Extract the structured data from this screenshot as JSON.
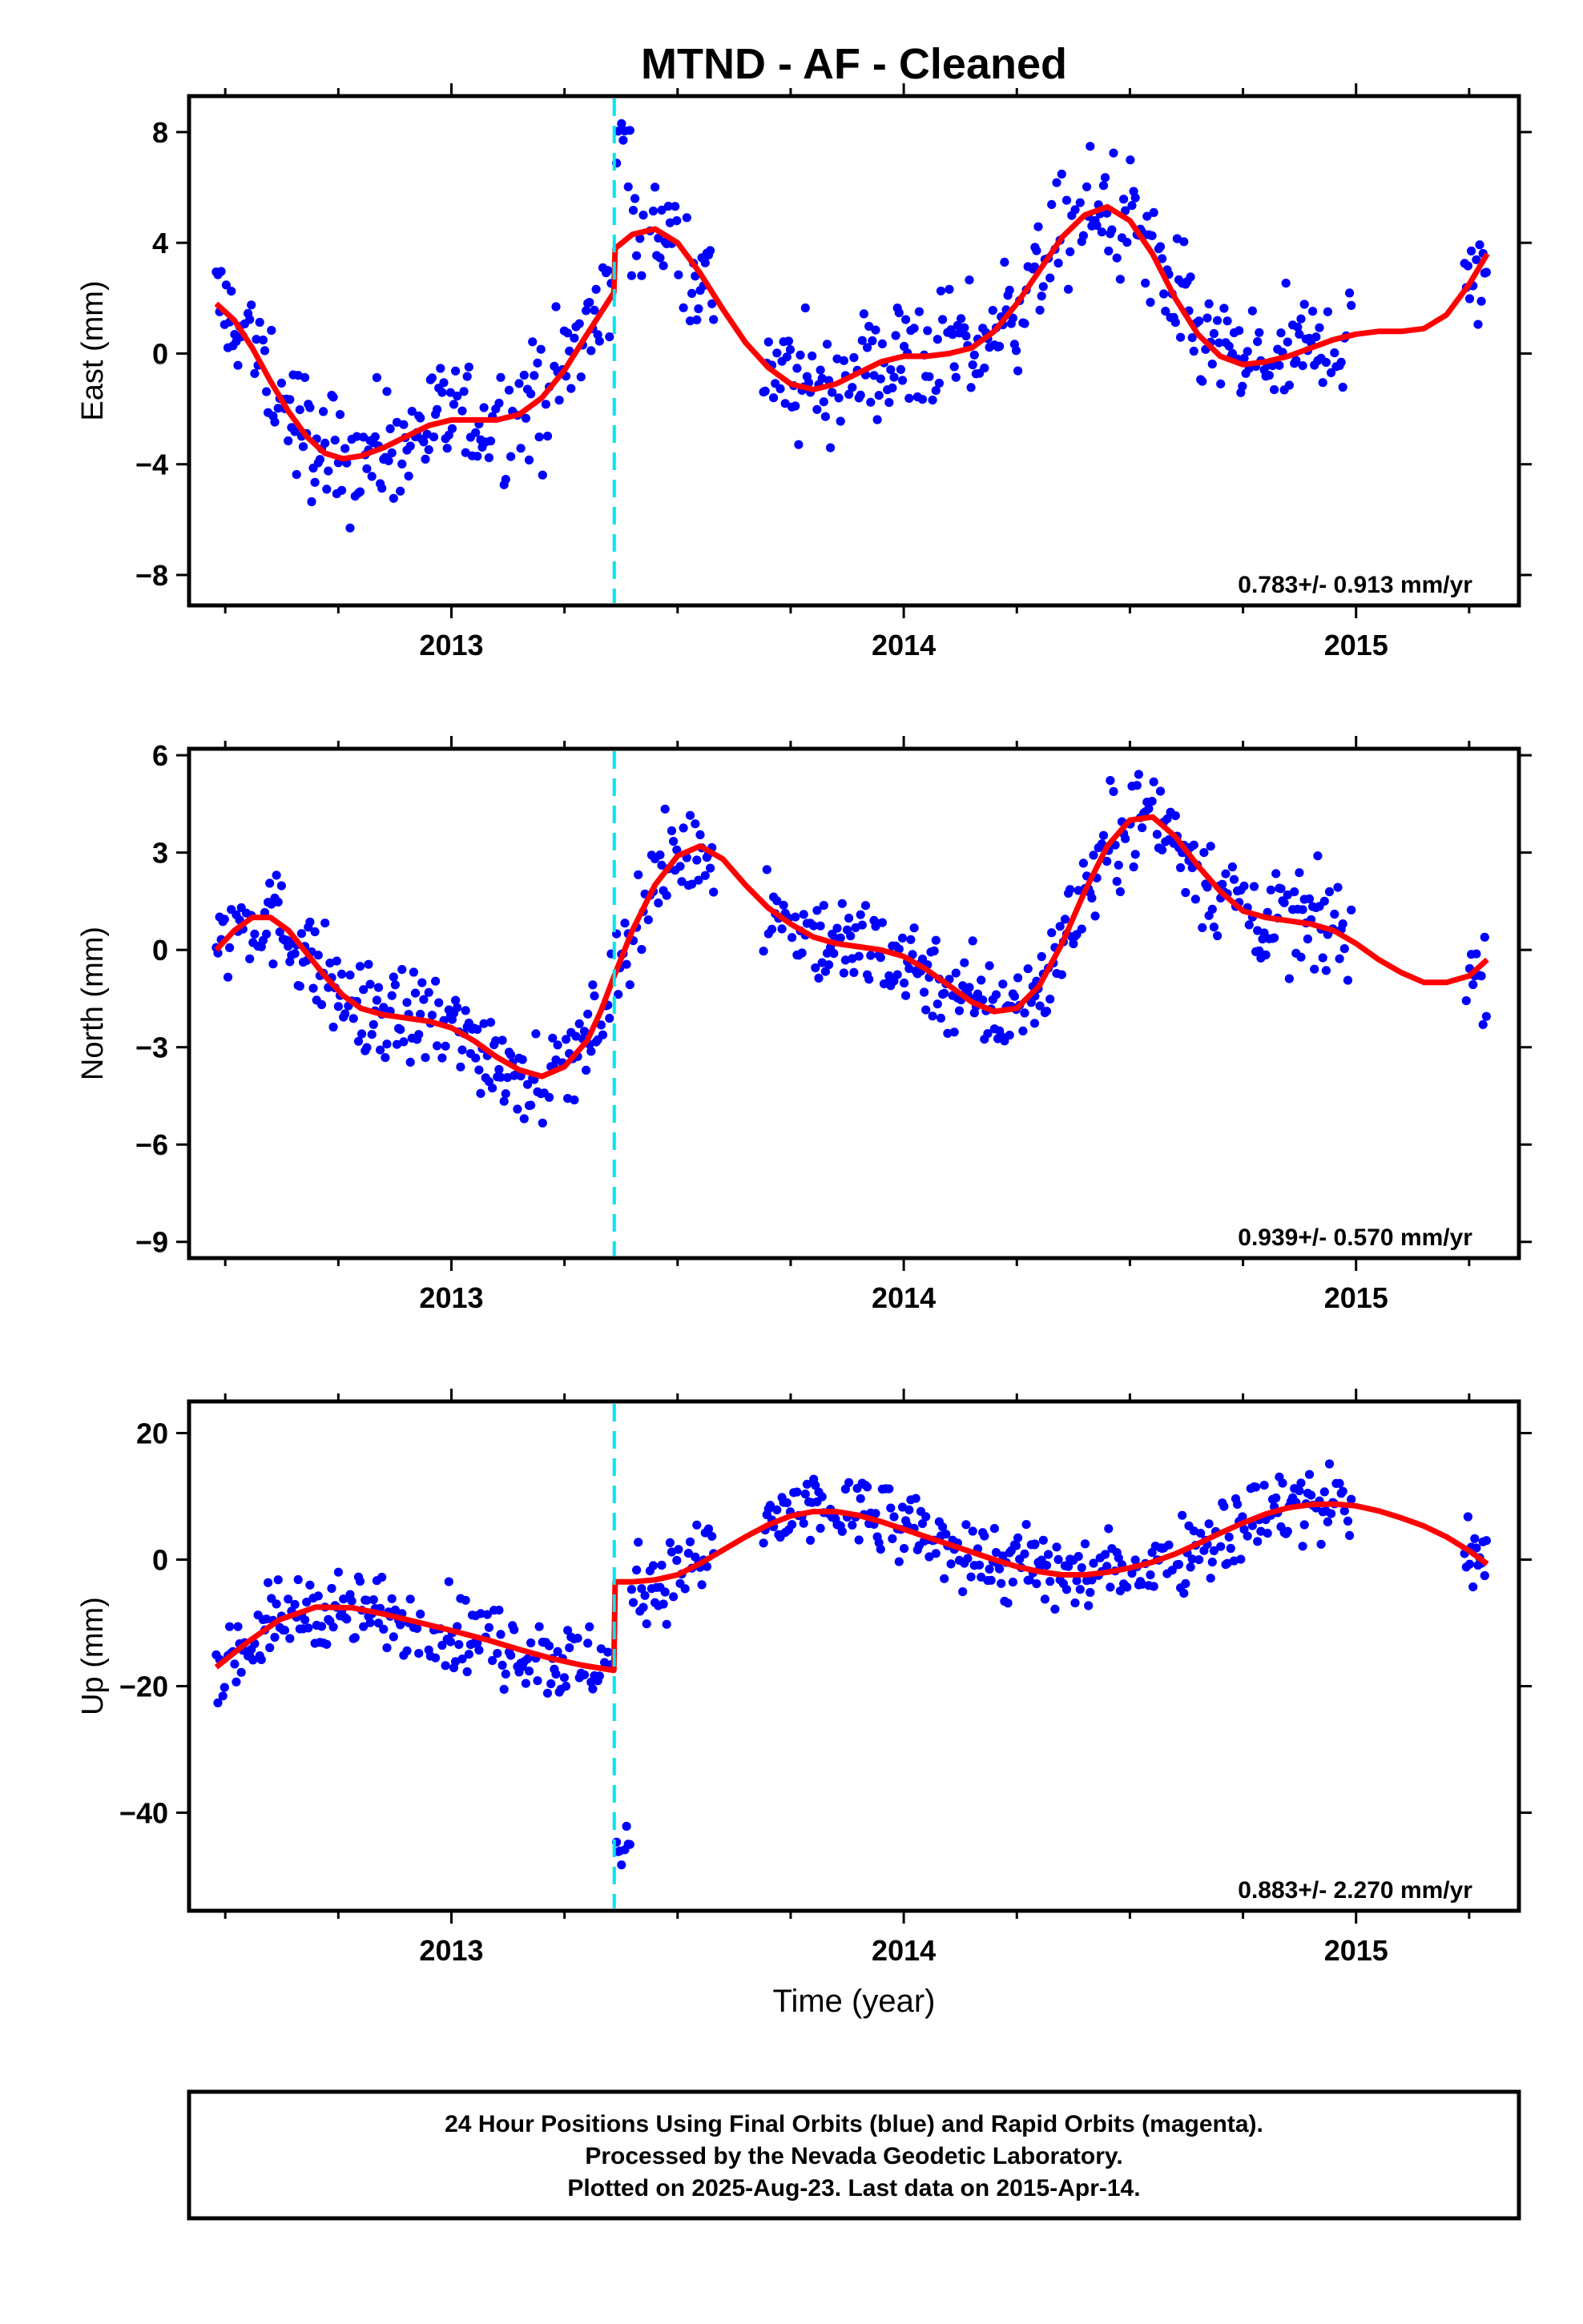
{
  "colors": {
    "points": "#0000ff",
    "model": "#ff0000",
    "offset_line": "#00e5ee",
    "frame": "#000000"
  },
  "chart_data": [
    {
      "type": "scatter",
      "title": "MTND  - AF - Cleaned",
      "ylabel": "East (mm)",
      "xlabel": "",
      "xlim": [
        2012.42,
        2015.36
      ],
      "ylim": [
        -9.1,
        9.3
      ],
      "x_ticks": [
        2013,
        2014,
        2015
      ],
      "y_ticks": [
        -8,
        -4,
        0,
        4,
        8
      ],
      "offset_epoch": 2013.36,
      "rate_annotation": "0.783+/- 0.913 mm/yr",
      "model_series": {
        "name": "",
        "x": [
          2012.48,
          2012.52,
          2012.56,
          2012.6,
          2012.64,
          2012.68,
          2012.72,
          2012.76,
          2012.8,
          2012.85,
          2012.9,
          2012.95,
          2013.0,
          2013.05,
          2013.1,
          2013.15,
          2013.2,
          2013.25,
          2013.3,
          2013.359,
          2013.362,
          2013.4,
          2013.45,
          2013.5,
          2013.55,
          2013.6,
          2013.65,
          2013.7,
          2013.75,
          2013.8,
          2013.85,
          2013.9,
          2013.95,
          2014.0,
          2014.05,
          2014.1,
          2014.15,
          2014.2,
          2014.25,
          2014.3,
          2014.35,
          2014.4,
          2014.45,
          2014.5,
          2014.55,
          2014.6,
          2014.65,
          2014.7,
          2014.75,
          2014.8,
          2014.85,
          2014.9,
          2014.95,
          2015.0,
          2015.05,
          2015.1,
          2015.15,
          2015.2,
          2015.25,
          2015.29
        ],
        "y": [
          1.8,
          1.2,
          0.2,
          -1.0,
          -2.1,
          -3.0,
          -3.6,
          -3.8,
          -3.7,
          -3.4,
          -3.0,
          -2.6,
          -2.4,
          -2.4,
          -2.4,
          -2.2,
          -1.6,
          -0.6,
          0.7,
          2.2,
          3.8,
          4.3,
          4.5,
          4.0,
          2.9,
          1.6,
          0.4,
          -0.5,
          -1.1,
          -1.3,
          -1.1,
          -0.7,
          -0.3,
          -0.1,
          -0.1,
          0.0,
          0.2,
          0.8,
          1.8,
          3.0,
          4.2,
          5.0,
          5.3,
          4.8,
          3.6,
          2.0,
          0.7,
          -0.1,
          -0.4,
          -0.3,
          -0.1,
          0.2,
          0.5,
          0.7,
          0.8,
          0.8,
          0.9,
          1.4,
          2.5,
          3.6
        ]
      }
    },
    {
      "type": "scatter",
      "ylabel": "North (mm)",
      "xlabel": "",
      "xlim": [
        2012.42,
        2015.36
      ],
      "ylim": [
        -9.5,
        6.2
      ],
      "x_ticks": [
        2013,
        2014,
        2015
      ],
      "y_ticks": [
        -9,
        -6,
        -3,
        0,
        3,
        6
      ],
      "offset_epoch": 2013.36,
      "rate_annotation": "0.939+/- 0.570 mm/yr",
      "model_series": {
        "name": "",
        "x": [
          2012.48,
          2012.52,
          2012.56,
          2012.6,
          2012.64,
          2012.68,
          2012.72,
          2012.76,
          2012.8,
          2012.85,
          2012.9,
          2012.95,
          2013.0,
          2013.05,
          2013.1,
          2013.15,
          2013.2,
          2013.25,
          2013.3,
          2013.33,
          2013.36,
          2013.4,
          2013.45,
          2013.5,
          2013.55,
          2013.6,
          2013.65,
          2013.7,
          2013.75,
          2013.8,
          2013.85,
          2013.9,
          2013.95,
          2014.0,
          2014.05,
          2014.1,
          2014.15,
          2014.2,
          2014.25,
          2014.3,
          2014.35,
          2014.4,
          2014.45,
          2014.5,
          2014.55,
          2014.6,
          2014.65,
          2014.7,
          2014.75,
          2014.8,
          2014.85,
          2014.9,
          2014.95,
          2015.0,
          2015.05,
          2015.1,
          2015.15,
          2015.2,
          2015.25,
          2015.29
        ],
        "y": [
          0.0,
          0.6,
          1.0,
          1.0,
          0.6,
          -0.1,
          -0.8,
          -1.4,
          -1.8,
          -2.0,
          -2.1,
          -2.2,
          -2.4,
          -2.8,
          -3.3,
          -3.7,
          -3.9,
          -3.6,
          -2.8,
          -1.9,
          -0.8,
          0.6,
          2.0,
          2.9,
          3.2,
          2.8,
          2.0,
          1.3,
          0.8,
          0.4,
          0.2,
          0.1,
          0.0,
          -0.2,
          -0.6,
          -1.1,
          -1.6,
          -1.9,
          -1.8,
          -1.1,
          0.2,
          1.8,
          3.2,
          4.0,
          4.1,
          3.5,
          2.6,
          1.8,
          1.2,
          1.0,
          0.9,
          0.8,
          0.6,
          0.2,
          -0.3,
          -0.7,
          -1.0,
          -1.0,
          -0.8,
          -0.3
        ]
      }
    },
    {
      "type": "scatter",
      "ylabel": "Up (mm)",
      "xlabel": "Time (year)",
      "xlim": [
        2012.42,
        2015.36
      ],
      "ylim": [
        -55.5,
        25.0
      ],
      "x_ticks": [
        2013,
        2014,
        2015
      ],
      "y_ticks": [
        -40,
        -20,
        0,
        20
      ],
      "offset_epoch": 2013.36,
      "rate_annotation": "0.883+/- 2.270 mm/yr",
      "model_series": {
        "name": "",
        "x": [
          2012.48,
          2012.55,
          2012.62,
          2012.7,
          2012.78,
          2012.85,
          2012.92,
          2013.0,
          2013.08,
          2013.15,
          2013.22,
          2013.29,
          2013.359,
          2013.362,
          2013.4,
          2013.45,
          2013.5,
          2013.55,
          2013.6,
          2013.65,
          2013.7,
          2013.75,
          2013.8,
          2013.85,
          2013.9,
          2013.95,
          2014.0,
          2014.05,
          2014.1,
          2014.15,
          2014.2,
          2014.25,
          2014.3,
          2014.35,
          2014.4,
          2014.45,
          2014.5,
          2014.55,
          2014.6,
          2014.65,
          2014.7,
          2014.75,
          2014.8,
          2014.85,
          2014.9,
          2014.95,
          2015.0,
          2015.05,
          2015.1,
          2015.15,
          2015.2,
          2015.25,
          2015.29
        ],
        "y": [
          -17.0,
          -13.0,
          -9.5,
          -7.5,
          -7.6,
          -8.6,
          -9.8,
          -11.2,
          -12.7,
          -14.2,
          -15.6,
          -16.7,
          -17.5,
          -3.5,
          -3.5,
          -3.2,
          -2.4,
          -0.6,
          1.5,
          3.6,
          5.5,
          6.9,
          7.6,
          7.6,
          7.0,
          6.0,
          4.8,
          3.6,
          2.4,
          1.2,
          0.0,
          -1.1,
          -1.9,
          -2.4,
          -2.4,
          -2.0,
          -1.3,
          -0.4,
          0.9,
          2.5,
          4.2,
          5.8,
          7.2,
          8.2,
          8.7,
          8.8,
          8.5,
          7.7,
          6.6,
          5.3,
          3.6,
          1.4,
          -0.7
        ]
      }
    }
  ],
  "footer": {
    "line1": "24 Hour Positions Using Final Orbits (blue) and Rapid Orbits (magenta).",
    "line2": "Processed by the Nevada Geodetic Laboratory.",
    "line3": "Plotted on 2025-Aug-23. Last data on 2015-Apr-14."
  }
}
